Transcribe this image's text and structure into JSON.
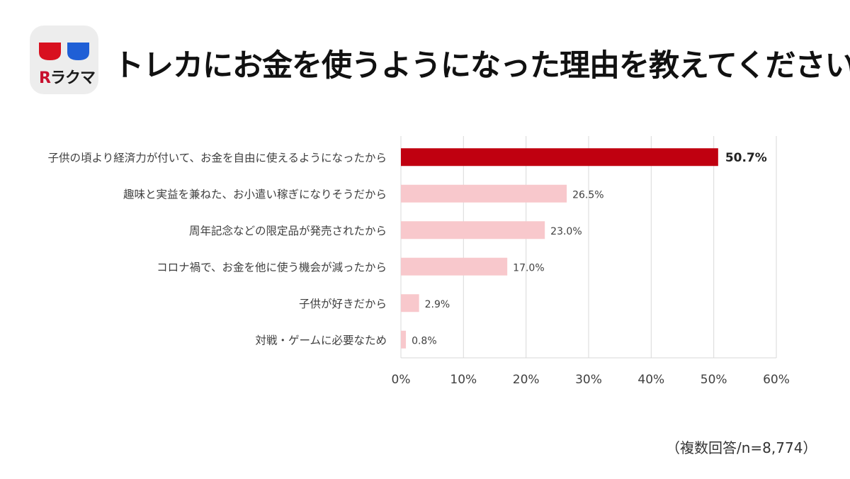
{
  "logo": {
    "brand_r": "R",
    "brand_rest": "ラクマ"
  },
  "title": "トレカにお金を使うようになった理由を教えてください。",
  "note": "（複数回答/n=8,774）",
  "colors": {
    "highlight": "#c00010",
    "bar": "#f8c8cc",
    "grid": "#d9d9d9",
    "text": "#404040"
  },
  "chart_data": {
    "type": "bar",
    "orientation": "horizontal",
    "categories": [
      "子供の頃より経済力が付いて、お金を自由に使えるようになったから",
      "趣味と実益を兼ねた、お小遣い稼ぎになりそうだから",
      "周年記念などの限定品が発売されたから",
      "コロナ禍で、お金を他に使う機会が減ったから",
      "子供が好きだから",
      "対戦・ゲームに必要なため"
    ],
    "values": [
      50.7,
      26.5,
      23.0,
      17.0,
      2.9,
      0.8
    ],
    "value_labels": [
      "50.7%",
      "26.5%",
      "23.0%",
      "17.0%",
      "2.9%",
      "0.8%"
    ],
    "x_ticks": [
      "0%",
      "10%",
      "20%",
      "30%",
      "40%",
      "50%",
      "60%"
    ],
    "xlim": [
      0,
      60
    ],
    "grid": true,
    "highlight_index": 0
  }
}
